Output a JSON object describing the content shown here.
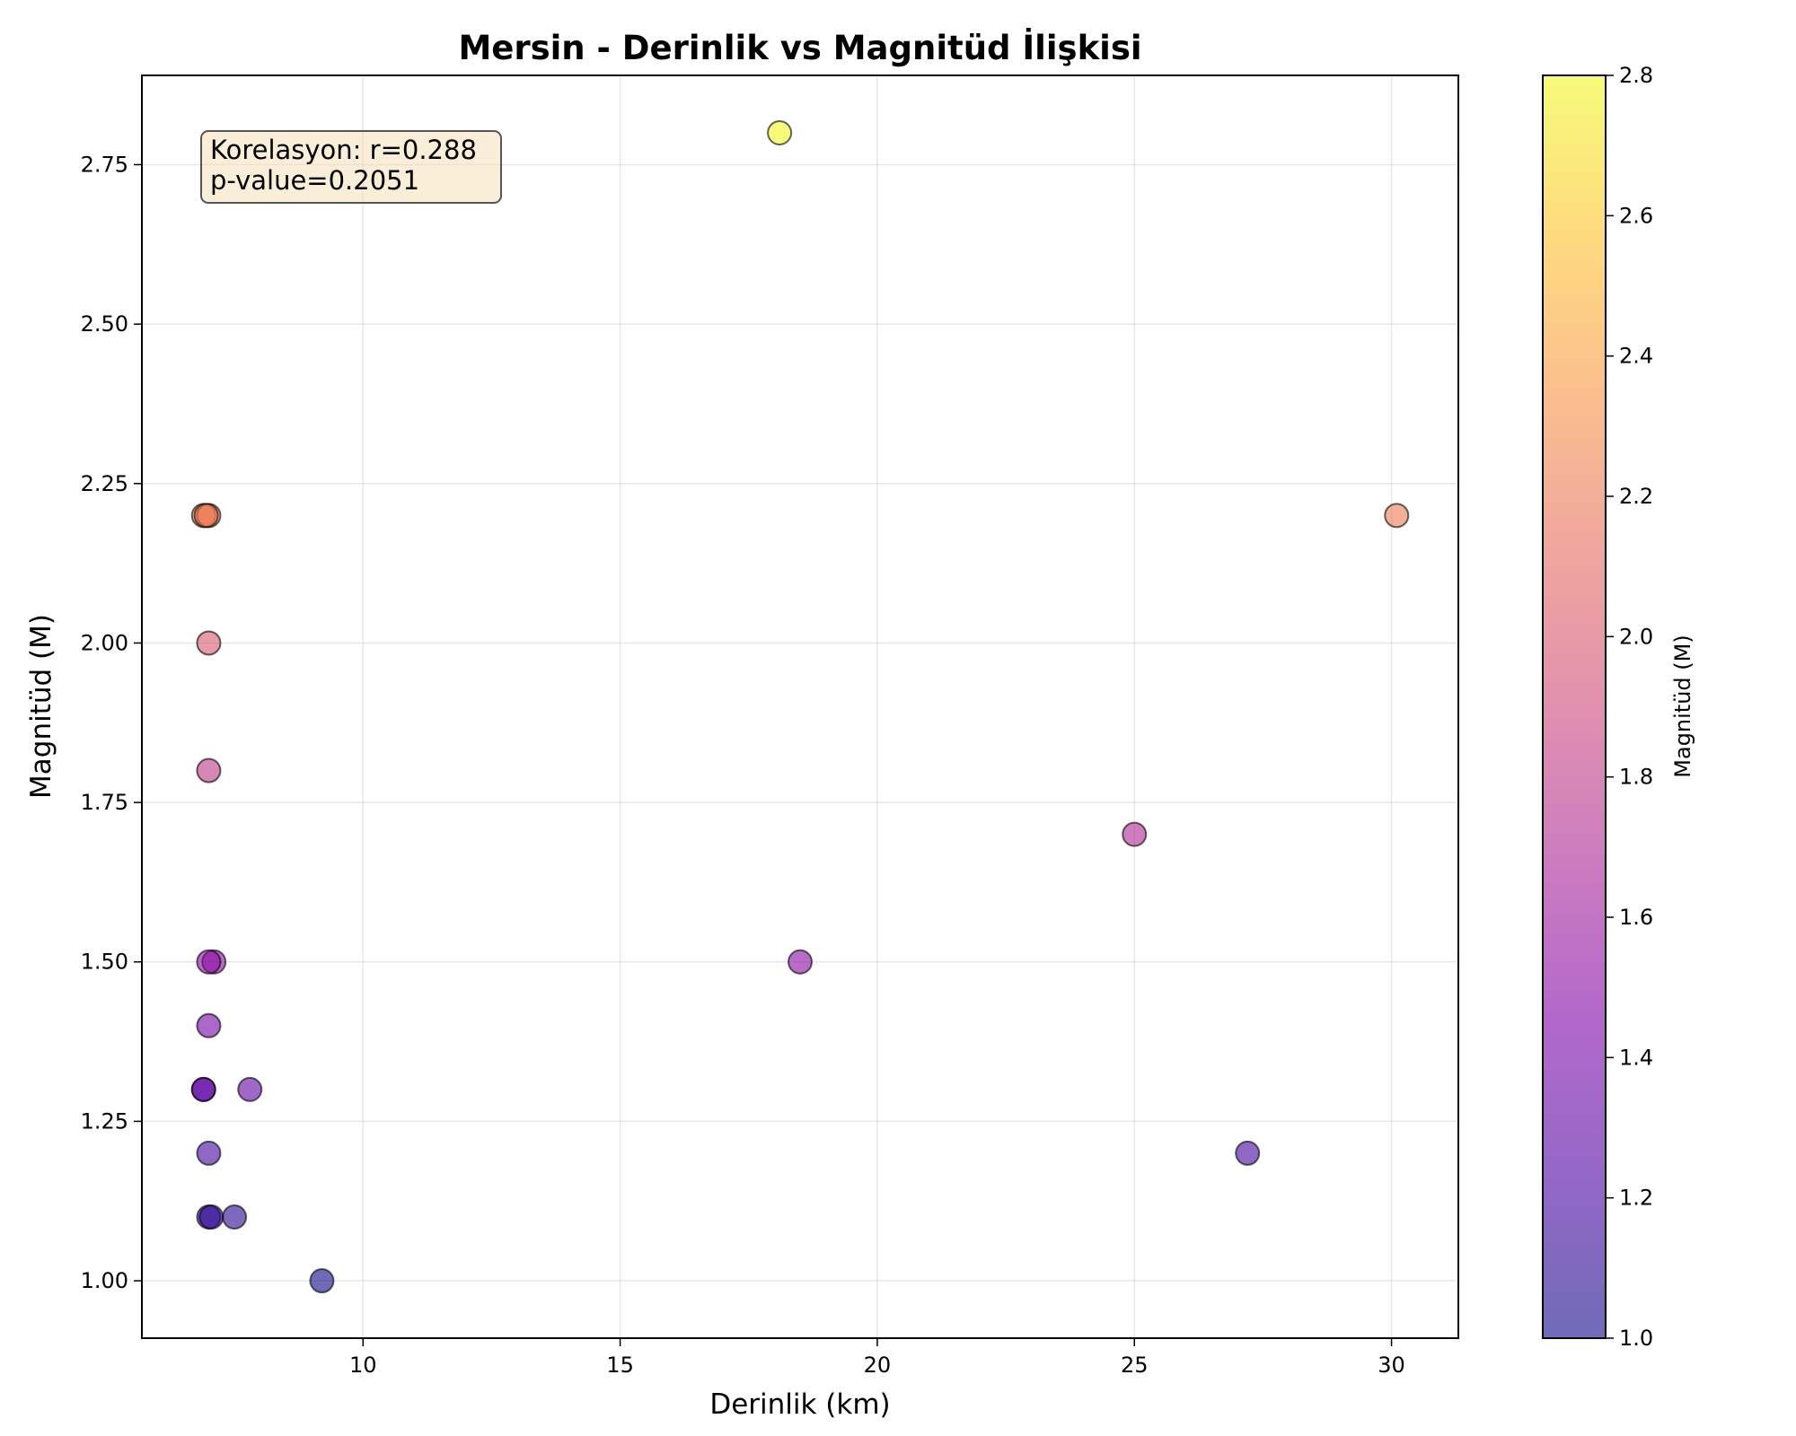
{
  "chart_data": {
    "type": "scatter",
    "title": "Mersin - Derinlik vs Magnitüd İlişkisi",
    "xlabel": "Derinlik (km)",
    "ylabel": "Magnitüd (M)",
    "xlim": [
      5.7,
      31.3
    ],
    "ylim": [
      0.91,
      2.89
    ],
    "xticks": [
      10,
      15,
      20,
      25,
      30
    ],
    "xtick_labels": [
      "10",
      "15",
      "20",
      "25",
      "30"
    ],
    "yticks": [
      1.0,
      1.25,
      1.5,
      1.75,
      2.0,
      2.25,
      2.5,
      2.75
    ],
    "ytick_labels": [
      "1.00",
      "1.25",
      "1.50",
      "1.75",
      "2.00",
      "2.25",
      "2.50",
      "2.75"
    ],
    "grid": true,
    "colormap": "plasma",
    "marker_alpha": 0.6,
    "marker_edge_color": "#000000",
    "annotation": {
      "lines": [
        "Korelasyon: r=0.288",
        "p-value=0.2051"
      ],
      "box_color": "#f5deb3",
      "placement": "top-left"
    },
    "colorbar": {
      "label": "Magnitüd (M)",
      "range": [
        1.0,
        2.8
      ],
      "ticks": [
        1.0,
        1.2,
        1.4,
        1.6,
        1.8,
        2.0,
        2.2,
        2.4,
        2.6,
        2.8
      ],
      "tick_labels": [
        "1.0",
        "1.2",
        "1.4",
        "1.6",
        "1.8",
        "2.0",
        "2.2",
        "2.4",
        "2.6",
        "2.8"
      ]
    },
    "points": [
      {
        "x": 18.1,
        "y": 2.8
      },
      {
        "x": 6.9,
        "y": 2.2
      },
      {
        "x": 7.0,
        "y": 2.2
      },
      {
        "x": 6.95,
        "y": 2.2
      },
      {
        "x": 30.1,
        "y": 2.2
      },
      {
        "x": 7.0,
        "y": 2.0
      },
      {
        "x": 7.0,
        "y": 1.8
      },
      {
        "x": 25.0,
        "y": 1.7
      },
      {
        "x": 7.1,
        "y": 1.5
      },
      {
        "x": 7.0,
        "y": 1.5
      },
      {
        "x": 18.5,
        "y": 1.5
      },
      {
        "x": 7.0,
        "y": 1.4
      },
      {
        "x": 6.9,
        "y": 1.3
      },
      {
        "x": 6.9,
        "y": 1.3
      },
      {
        "x": 7.8,
        "y": 1.3
      },
      {
        "x": 7.0,
        "y": 1.2
      },
      {
        "x": 27.2,
        "y": 1.2
      },
      {
        "x": 7.0,
        "y": 1.1
      },
      {
        "x": 7.05,
        "y": 1.1
      },
      {
        "x": 7.5,
        "y": 1.1
      },
      {
        "x": 9.2,
        "y": 1.0
      }
    ]
  }
}
